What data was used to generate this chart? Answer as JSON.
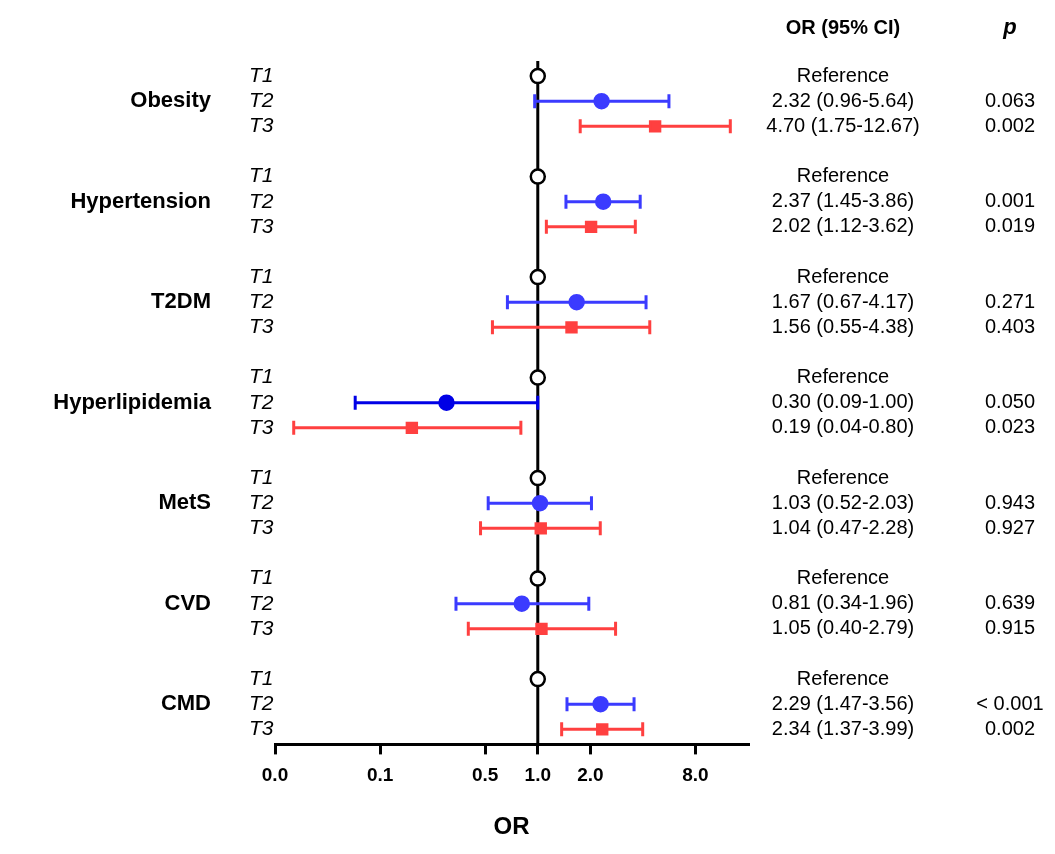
{
  "chart_data": {
    "type": "scatter",
    "orientation": "horizontal",
    "log": "x",
    "xlabel": "OR",
    "categories": [
      "Obesity",
      "Hypertension",
      "T2DM",
      "Hyperlipidemia",
      "MetS",
      "CVD",
      "CMD"
    ],
    "series": [
      {
        "color": "#ffffff",
        "marker": "circle",
        "values": [
          1,
          1,
          1,
          1,
          1,
          1,
          1
        ]
      },
      {
        "colors": [
          "#3b3bff",
          "#3b3bff",
          "#3b3bff",
          "#0000e6",
          "#3b3bff",
          "#3b3bff",
          "#3b3bff"
        ],
        "marker": "circle",
        "values": [
          2.32,
          2.37,
          1.67,
          0.3,
          1.03,
          0.81,
          2.29
        ],
        "errors": [
          [
            0.96,
            5.64
          ],
          [
            1.45,
            3.86
          ],
          [
            0.67,
            4.17
          ],
          [
            0.09,
            1.0
          ],
          [
            0.52,
            2.03
          ],
          [
            0.34,
            1.96
          ],
          [
            1.47,
            3.56
          ]
        ]
      },
      {
        "color": "#ff4040",
        "marker": "square",
        "values": [
          4.7,
          2.02,
          1.56,
          0.19,
          1.04,
          1.05,
          2.34
        ],
        "errors": [
          [
            1.75,
            12.67
          ],
          [
            1.12,
            3.62
          ],
          [
            0.55,
            4.38
          ],
          [
            0.04,
            0.8
          ],
          [
            0.47,
            2.28
          ],
          [
            0.4,
            2.79
          ],
          [
            1.37,
            3.99
          ]
        ]
      }
    ],
    "xlim": [
      0.03125,
      16
    ],
    "xticks": [
      {
        "value": 0.03125,
        "label": "0.0"
      },
      {
        "value": 0.125,
        "label": "0.1"
      },
      0.5,
      {
        "value": 1,
        "label": "1.0"
      },
      {
        "value": 2,
        "label": "2.0"
      },
      {
        "value": 8,
        "label": "8.0"
      }
    ],
    "ref_lines": [
      {
        "axis": "x",
        "value": 1,
        "color": "#000000"
      }
    ],
    "annotations": [
      "OR (95% CI)",
      "p",
      "T1",
      "T2",
      "T3",
      "Reference",
      "2.32 (0.96-5.64)",
      "0.063",
      "4.70 (1.75-12.67)",
      "0.002",
      "Reference",
      "2.37 (1.45-3.86)",
      "0.001",
      "2.02 (1.12-3.62)",
      "0.019",
      "Reference",
      "1.67 (0.67-4.17)",
      "0.271",
      "1.56 (0.55-4.38)",
      "0.403",
      "Reference",
      "0.30 (0.09-1.00)",
      "0.050",
      "0.19 (0.04-0.80)",
      "0.023",
      "Reference",
      "1.03 (0.52-2.03)",
      "0.943",
      "1.04 (0.47-2.28)",
      "0.927",
      "Reference",
      "0.81 (0.34-1.96)",
      "0.639",
      "1.05 (0.40-2.79)",
      "0.915",
      "Reference",
      "2.29 (1.47-3.56)",
      "< 0.001",
      "2.34 (1.37-3.99)",
      "0.002"
    ]
  }
}
